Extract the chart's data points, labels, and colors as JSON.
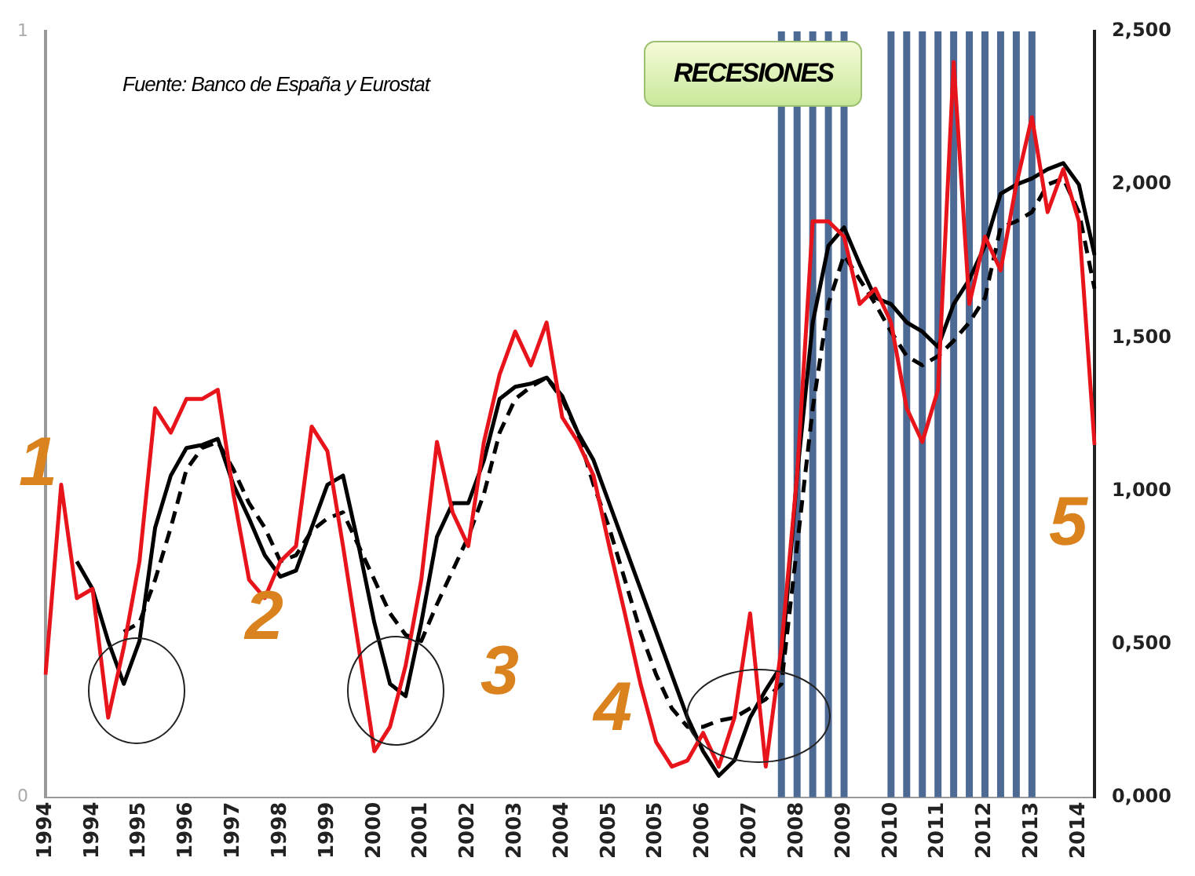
{
  "chart_data": {
    "type": "line",
    "categories": [
      "1994",
      null,
      null,
      "1994",
      null,
      null,
      "1995",
      null,
      null,
      "1996",
      null,
      null,
      "1997",
      null,
      null,
      "1998",
      null,
      null,
      "1999",
      null,
      null,
      "2000",
      null,
      null,
      "2001",
      null,
      null,
      "2002",
      null,
      null,
      "2003",
      null,
      null,
      "2004",
      null,
      null,
      "2005",
      null,
      null,
      "2005",
      null,
      null,
      "2006",
      null,
      null,
      "2007",
      null,
      null,
      "2008",
      null,
      null,
      "2009",
      null,
      null,
      "2010",
      null,
      null,
      "2011",
      null,
      null,
      "2012",
      null,
      null,
      "2013",
      null,
      null,
      "2014",
      null
    ],
    "series": [
      {
        "type": "bar",
        "axis": "y",
        "color": "#4d6a94",
        "values": [
          null,
          null,
          null,
          null,
          null,
          null,
          null,
          null,
          null,
          null,
          null,
          null,
          null,
          null,
          null,
          null,
          null,
          null,
          null,
          null,
          null,
          null,
          null,
          null,
          null,
          null,
          null,
          null,
          null,
          null,
          null,
          null,
          null,
          null,
          null,
          null,
          null,
          null,
          null,
          null,
          null,
          null,
          null,
          null,
          null,
          null,
          null,
          1,
          1,
          1,
          1,
          1,
          null,
          null,
          1,
          1,
          1,
          1,
          1,
          1,
          1,
          1,
          1,
          1,
          null,
          null,
          null,
          null
        ]
      },
      {
        "axis": "y2",
        "color": "#e8141b",
        "line_style": "solid",
        "values": [
          0.4,
          1.02,
          0.65,
          0.68,
          0.26,
          0.49,
          0.77,
          1.27,
          1.19,
          1.3,
          1.3,
          1.33,
          0.99,
          0.71,
          0.65,
          0.77,
          0.82,
          1.21,
          1.13,
          0.82,
          0.49,
          0.15,
          0.23,
          0.43,
          0.71,
          1.16,
          0.93,
          0.82,
          1.16,
          1.38,
          1.52,
          1.41,
          1.55,
          1.24,
          1.16,
          1.05,
          0.82,
          0.6,
          0.37,
          0.18,
          0.1,
          0.12,
          0.21,
          0.1,
          0.26,
          0.6,
          0.1,
          0.49,
          1.05,
          1.88,
          1.88,
          1.83,
          1.61,
          1.66,
          1.55,
          1.27,
          1.16,
          1.33,
          2.4,
          1.61,
          1.83,
          1.72,
          2.0,
          2.22,
          1.91,
          2.05,
          1.88,
          1.15
        ]
      },
      {
        "axis": "y2",
        "color": "#000000",
        "line_style": "solid",
        "values": [
          null,
          null,
          0.77,
          0.68,
          0.51,
          0.37,
          0.51,
          0.88,
          1.05,
          1.14,
          1.15,
          1.17,
          1.02,
          0.91,
          0.79,
          0.72,
          0.74,
          0.88,
          1.02,
          1.05,
          0.82,
          0.57,
          0.37,
          0.33,
          0.57,
          0.85,
          0.96,
          0.96,
          1.1,
          1.3,
          1.34,
          1.35,
          1.37,
          1.31,
          1.19,
          1.1,
          0.96,
          0.82,
          0.68,
          0.54,
          0.4,
          0.26,
          0.15,
          0.07,
          0.12,
          0.26,
          0.35,
          0.43,
          1.05,
          1.55,
          1.8,
          1.86,
          1.74,
          1.63,
          1.61,
          1.55,
          1.52,
          1.47,
          1.61,
          1.69,
          1.8,
          1.97,
          2.0,
          2.02,
          2.05,
          2.07,
          2.0,
          1.77
        ]
      },
      {
        "axis": "y2",
        "color": "#000000",
        "line_style": "dashed",
        "values": [
          null,
          null,
          null,
          null,
          null,
          0.54,
          0.57,
          0.71,
          0.88,
          1.07,
          1.14,
          1.16,
          1.07,
          0.96,
          0.88,
          0.77,
          0.79,
          0.87,
          0.91,
          0.93,
          0.82,
          0.71,
          0.6,
          0.53,
          0.51,
          0.63,
          0.74,
          0.85,
          0.99,
          1.19,
          1.3,
          1.34,
          1.37,
          1.3,
          1.19,
          1.02,
          0.88,
          0.71,
          0.54,
          0.4,
          0.29,
          0.23,
          0.23,
          0.25,
          0.26,
          0.29,
          0.32,
          0.37,
          0.82,
          1.27,
          1.61,
          1.77,
          1.69,
          1.61,
          1.52,
          1.44,
          1.41,
          1.44,
          1.49,
          1.55,
          1.63,
          1.86,
          1.88,
          1.91,
          2.0,
          2.02,
          1.91,
          1.66
        ]
      }
    ],
    "ylim": [
      0,
      1
    ],
    "yticks": [
      {
        "value": 0,
        "label": "0"
      },
      {
        "value": 1,
        "label": "1"
      }
    ],
    "y2lim": [
      0,
      2.5
    ],
    "y2ticks": [
      {
        "value": 0,
        "label": "0,000"
      },
      {
        "value": 0.5,
        "label": "0,500"
      },
      {
        "value": 1,
        "label": "1,000"
      },
      {
        "value": 1.5,
        "label": "1,500"
      },
      {
        "value": 2,
        "label": "2,000"
      },
      {
        "value": 2.5,
        "label": "2,500"
      }
    ],
    "grid": false,
    "legend": false,
    "marker": "none",
    "annotations": [
      "Fuente: Banco de España y Eurostat",
      "RECESIONES",
      "1",
      "2",
      "3",
      "4",
      "5"
    ]
  }
}
